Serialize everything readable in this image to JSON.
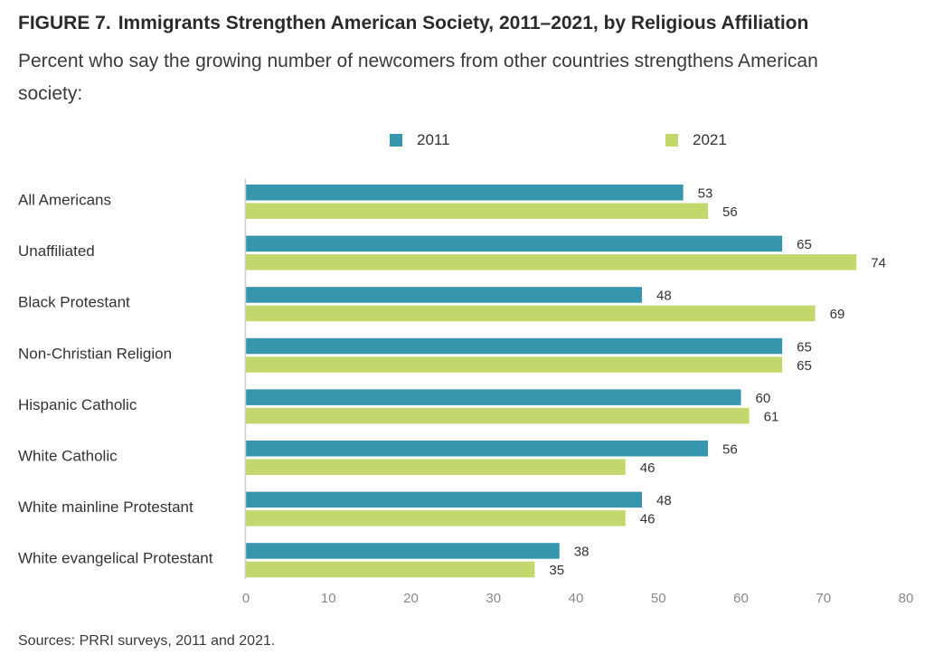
{
  "figure": {
    "number": "FIGURE 7.",
    "title": "Immigrants Strengthen American Society, 2011–2021, by Religious Affiliation",
    "subtitle": "Percent who say the growing number of newcomers from other countries strengthens American society:",
    "source": "Sources: PRRI surveys, 2011 and 2021."
  },
  "colors": {
    "series_2011": "#3596ad",
    "series_2021": "#c3d86c",
    "axis": "#cccccc"
  },
  "chart_data": {
    "type": "bar",
    "orientation": "horizontal",
    "categories": [
      "All Americans",
      "Unaffiliated",
      "Black Protestant",
      "Non-Christian Religion",
      "Hispanic Catholic",
      "White Catholic",
      "White mainline Protestant",
      "White evangelical Protestant"
    ],
    "series": [
      {
        "name": "2011",
        "values": [
          53,
          65,
          48,
          65,
          60,
          56,
          48,
          38
        ]
      },
      {
        "name": "2021",
        "values": [
          56,
          74,
          69,
          65,
          61,
          46,
          46,
          35
        ]
      }
    ],
    "xlim": [
      0,
      80
    ],
    "xticks": [
      0,
      10,
      20,
      30,
      40,
      50,
      60,
      70,
      80
    ],
    "legend_position": "top",
    "grid": false,
    "data_labels": true
  }
}
